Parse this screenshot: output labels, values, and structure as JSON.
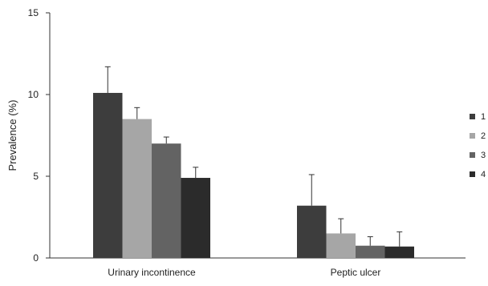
{
  "chart_data": {
    "type": "bar",
    "title": "",
    "xlabel": "",
    "ylabel": "Prevalence (%)",
    "ylim": [
      0,
      15
    ],
    "yticks": [
      "0",
      "5",
      "10",
      "15"
    ],
    "categories": [
      "Urinary incontinence",
      "Peptic ulcer"
    ],
    "series": [
      {
        "name": "1",
        "values": [
          10.1,
          3.2
        ],
        "errors": [
          1.6,
          1.9
        ],
        "color": "#3d3d3d"
      },
      {
        "name": "2",
        "values": [
          8.5,
          1.5
        ],
        "errors": [
          0.7,
          0.9
        ],
        "color": "#a6a6a6"
      },
      {
        "name": "3",
        "values": [
          7.0,
          0.75
        ],
        "errors": [
          0.4,
          0.55
        ],
        "color": "#636363"
      },
      {
        "name": "4",
        "values": [
          4.9,
          0.7
        ],
        "errors": [
          0.65,
          0.9
        ],
        "color": "#2b2b2b"
      }
    ],
    "legend_placement": "right",
    "grid": false,
    "error_bars": "upper"
  }
}
